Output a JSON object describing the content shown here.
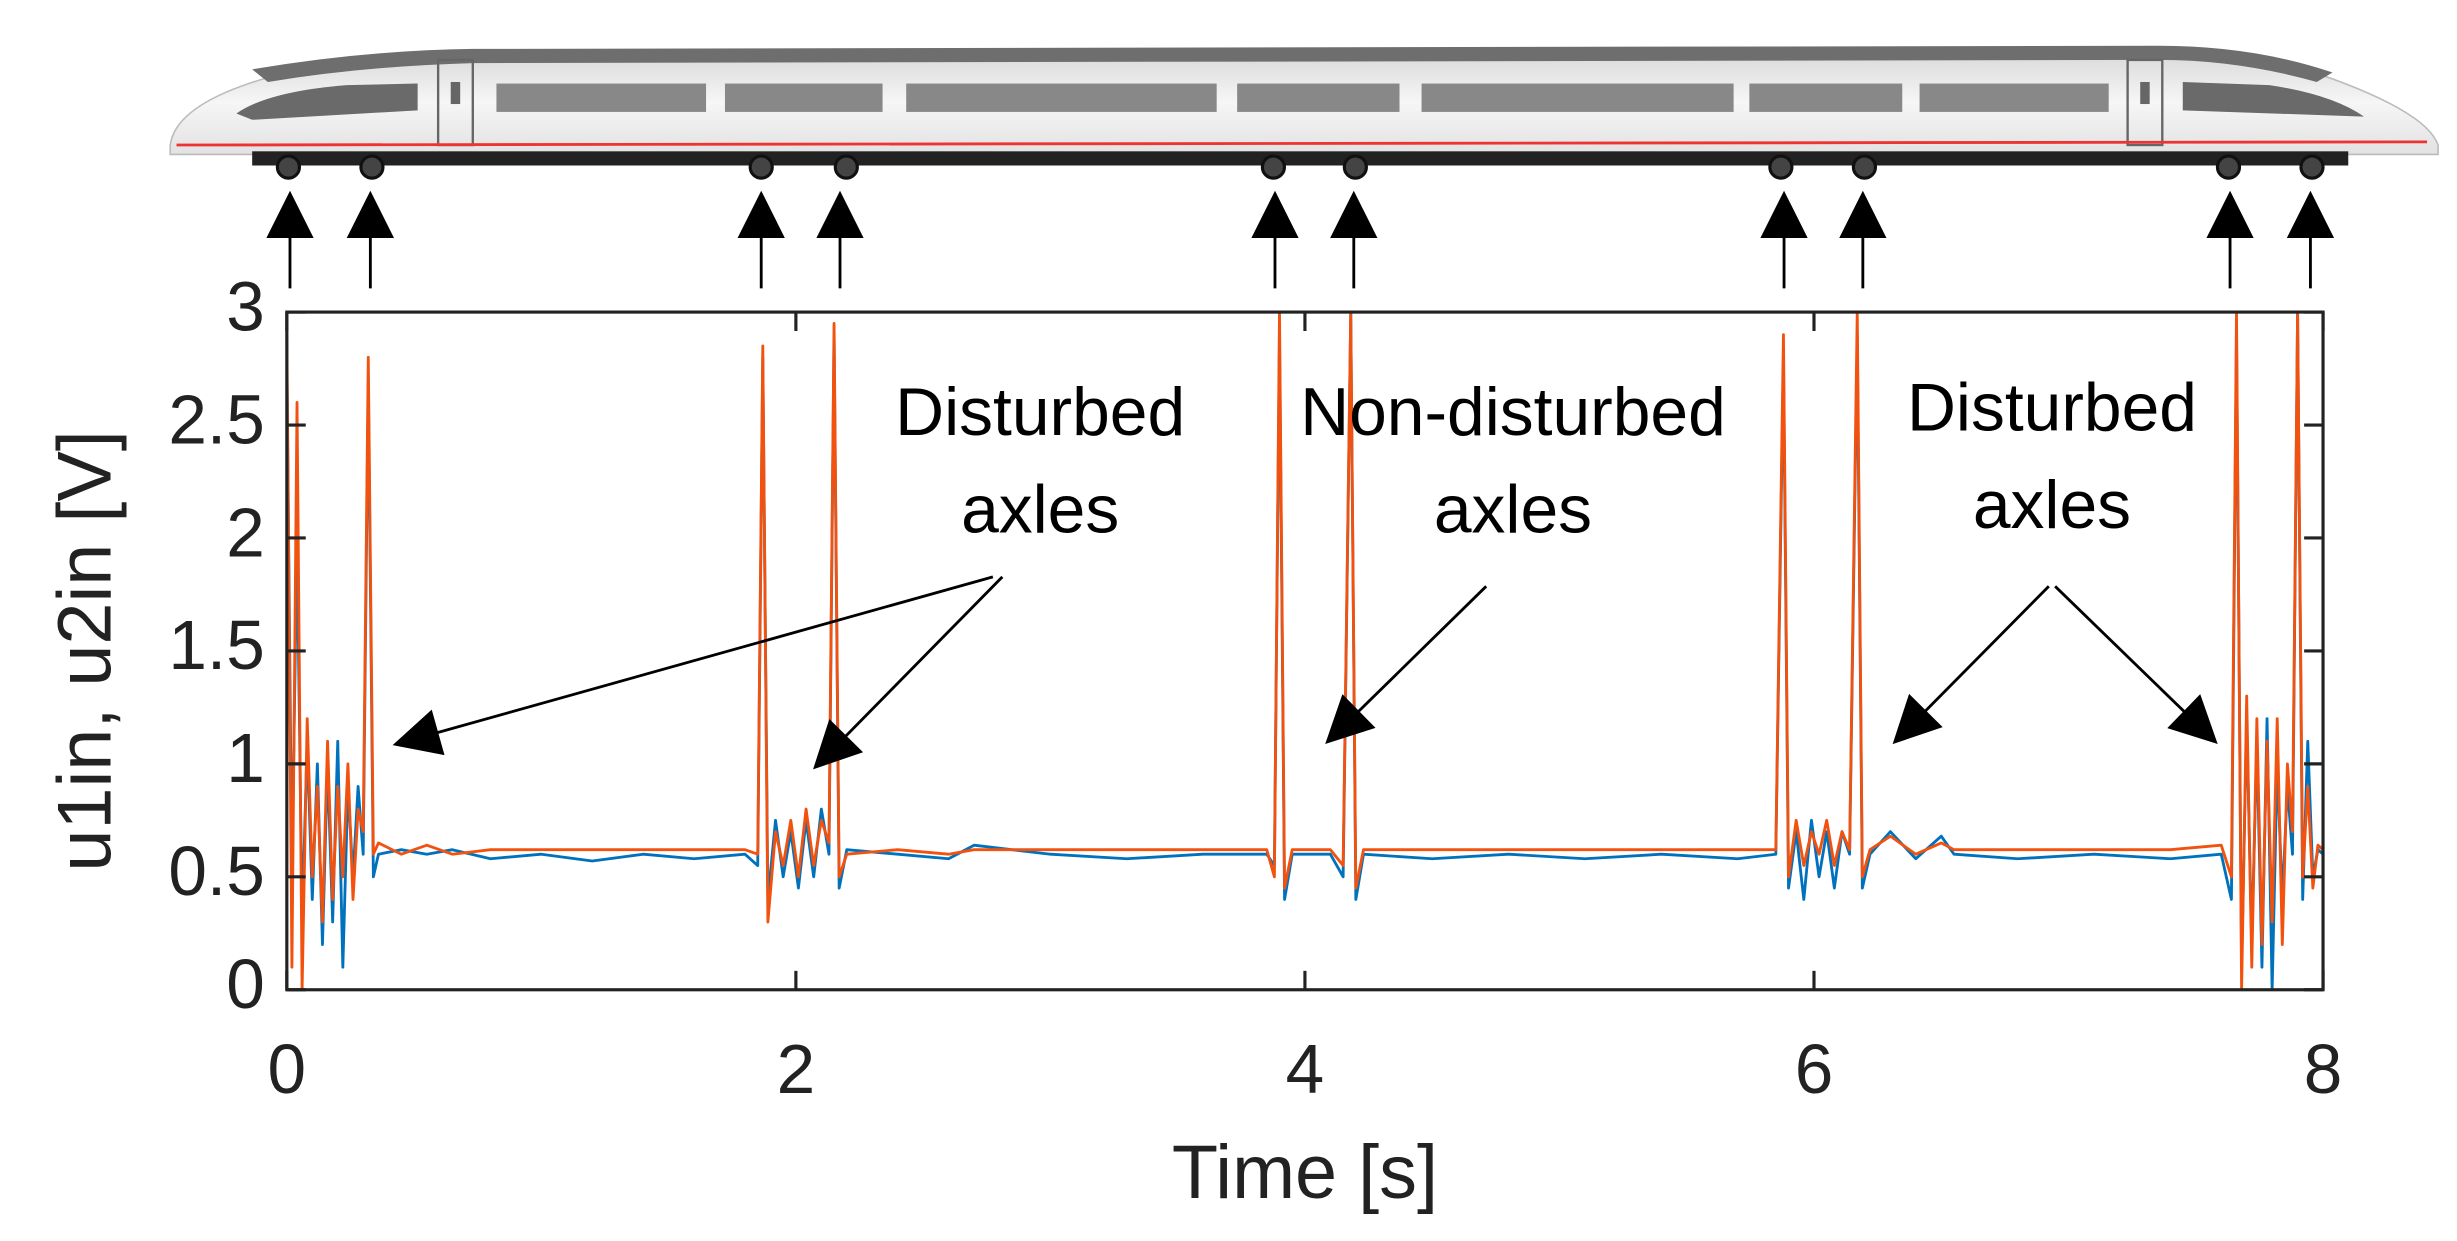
{
  "chart_data": {
    "type": "line",
    "ylabel": "u1in, u2in [V]",
    "xlabel": "Time [s]",
    "xlim": [
      0,
      8
    ],
    "xticks": [
      0,
      2,
      4,
      6,
      8
    ],
    "ylim": [
      0,
      3
    ],
    "yticks": [
      0,
      0.5,
      1,
      1.5,
      2,
      2.5,
      3
    ],
    "grid": false,
    "annotations": [
      {
        "lines": [
          "Disturbed",
          "axles"
        ]
      },
      {
        "lines": [
          "Non-disturbed",
          "axles"
        ]
      },
      {
        "lines": [
          "Disturbed",
          "axles"
        ]
      }
    ],
    "x": [
      0,
      0.02,
      0.04,
      0.06,
      0.08,
      0.1,
      0.12,
      0.14,
      0.16,
      0.18,
      0.2,
      0.22,
      0.24,
      0.26,
      0.28,
      0.3,
      0.32,
      0.34,
      0.36,
      0.45,
      0.55,
      0.65,
      0.8,
      1.0,
      1.2,
      1.4,
      1.6,
      1.8,
      1.85,
      1.87,
      1.89,
      1.92,
      1.95,
      1.98,
      2.01,
      2.04,
      2.07,
      2.1,
      2.13,
      2.15,
      2.17,
      2.2,
      2.4,
      2.6,
      2.7,
      3.0,
      3.3,
      3.6,
      3.85,
      3.88,
      3.9,
      3.92,
      3.95,
      4.1,
      4.15,
      4.18,
      4.2,
      4.23,
      4.5,
      4.8,
      5.1,
      5.4,
      5.7,
      5.85,
      5.88,
      5.9,
      5.93,
      5.96,
      5.99,
      6.02,
      6.05,
      6.08,
      6.11,
      6.14,
      6.17,
      6.19,
      6.22,
      6.3,
      6.4,
      6.5,
      6.55,
      6.8,
      7.1,
      7.4,
      7.6,
      7.64,
      7.66,
      7.68,
      7.7,
      7.72,
      7.74,
      7.76,
      7.78,
      7.8,
      7.82,
      7.84,
      7.86,
      7.88,
      7.9,
      7.92,
      7.94,
      7.96,
      7.98,
      8.0
    ],
    "series": [
      {
        "color": "#0072bd",
        "values": [
          2.8,
          0.5,
          2.0,
          0.3,
          1.1,
          0.4,
          1.0,
          0.2,
          1.0,
          0.3,
          1.1,
          0.1,
          0.9,
          0.5,
          0.9,
          0.6,
          2.7,
          0.5,
          0.6,
          0.62,
          0.6,
          0.62,
          0.58,
          0.6,
          0.57,
          0.6,
          0.58,
          0.6,
          0.55,
          2.8,
          0.4,
          0.75,
          0.5,
          0.7,
          0.45,
          0.75,
          0.5,
          0.8,
          0.6,
          2.9,
          0.45,
          0.62,
          0.6,
          0.58,
          0.64,
          0.6,
          0.58,
          0.6,
          0.6,
          0.55,
          2.9,
          0.4,
          0.6,
          0.6,
          0.5,
          3.0,
          0.4,
          0.6,
          0.58,
          0.6,
          0.58,
          0.6,
          0.58,
          0.6,
          2.8,
          0.45,
          0.7,
          0.4,
          0.75,
          0.5,
          0.7,
          0.45,
          0.7,
          0.6,
          2.9,
          0.45,
          0.6,
          0.7,
          0.58,
          0.68,
          0.6,
          0.58,
          0.6,
          0.58,
          0.6,
          0.4,
          2.9,
          0.1,
          1.2,
          0.2,
          1.1,
          0.1,
          1.2,
          0.0,
          1.0,
          0.4,
          0.9,
          0.6,
          3.0,
          0.4,
          1.1,
          0.5,
          0.62,
          0.6
        ]
      },
      {
        "color": "#f2520f",
        "values": [
          2.9,
          0.1,
          2.6,
          0.0,
          1.2,
          0.5,
          0.9,
          0.3,
          1.1,
          0.4,
          0.9,
          0.5,
          1.0,
          0.4,
          0.8,
          0.7,
          2.8,
          0.6,
          0.65,
          0.6,
          0.64,
          0.6,
          0.62,
          0.62,
          0.62,
          0.62,
          0.62,
          0.62,
          0.6,
          2.85,
          0.3,
          0.7,
          0.55,
          0.75,
          0.5,
          0.8,
          0.55,
          0.75,
          0.65,
          2.95,
          0.5,
          0.6,
          0.62,
          0.6,
          0.62,
          0.62,
          0.62,
          0.62,
          0.62,
          0.5,
          3.0,
          0.45,
          0.62,
          0.62,
          0.55,
          3.0,
          0.45,
          0.62,
          0.62,
          0.62,
          0.62,
          0.62,
          0.62,
          0.62,
          2.9,
          0.5,
          0.75,
          0.55,
          0.7,
          0.6,
          0.75,
          0.55,
          0.7,
          0.62,
          3.0,
          0.5,
          0.62,
          0.68,
          0.6,
          0.65,
          0.62,
          0.62,
          0.62,
          0.62,
          0.64,
          0.5,
          3.0,
          0.0,
          1.3,
          0.1,
          1.2,
          0.2,
          1.1,
          0.3,
          1.2,
          0.2,
          1.0,
          0.7,
          3.0,
          0.5,
          0.9,
          0.45,
          0.64,
          0.62
        ]
      }
    ]
  }
}
